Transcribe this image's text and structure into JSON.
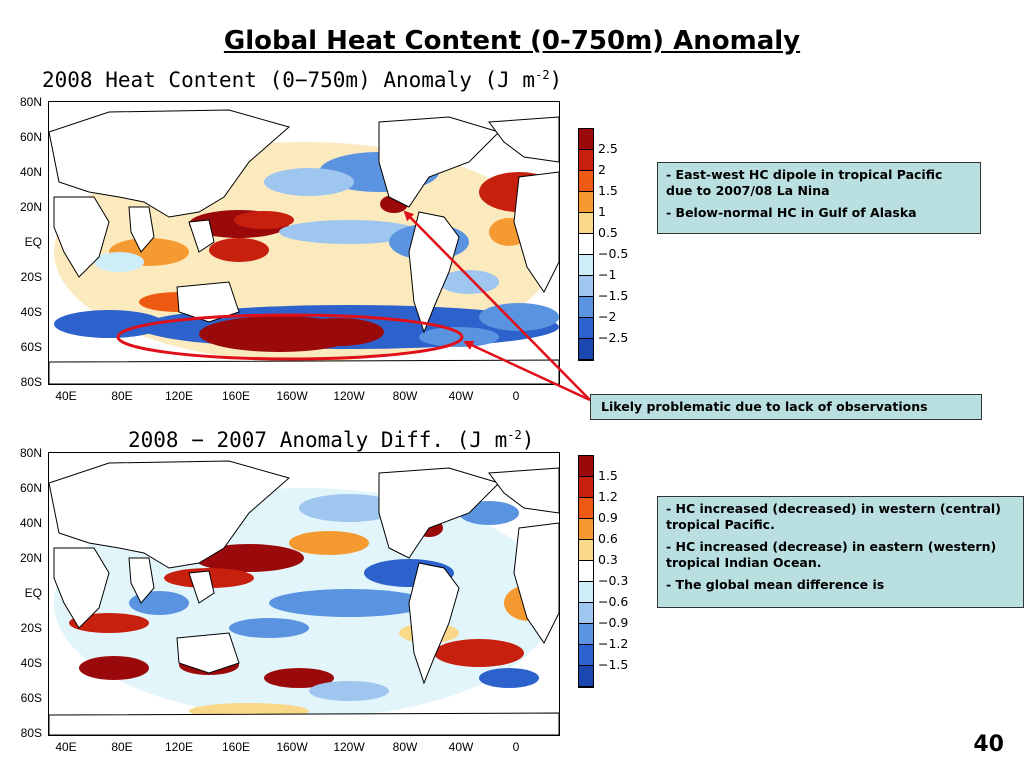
{
  "slide_title": "Global Heat Content (0-750m) Anomaly",
  "page_number": "40",
  "maps": [
    {
      "title": "2008 Heat Content (0−750m) Anomaly (J m",
      "title_sup": "-2",
      "title_suffix": ")",
      "lat_ticks": [
        "80N",
        "60N",
        "40N",
        "20N",
        "EQ",
        "20S",
        "40S",
        "60S",
        "80S"
      ],
      "lon_ticks": [
        "40E",
        "80E",
        "120E",
        "160E",
        "160W",
        "120W",
        "80W",
        "40W",
        "0"
      ],
      "colorbar_labels": [
        "2.5",
        "2",
        "1.5",
        "1",
        "0.5",
        "−0.5",
        "−1",
        "−1.5",
        "−2",
        "−2.5"
      ],
      "colorbar_colors": [
        "#9b0a0a",
        "#c8200e",
        "#ee5a14",
        "#f59a30",
        "#f9d88a",
        "#ffffff",
        "#cdeef8",
        "#9fc6ee",
        "#5a94e0",
        "#2d62cc",
        "#1a48b0"
      ]
    },
    {
      "title": "2008 − 2007 Anomaly Diff. (J m",
      "title_sup": "-2",
      "title_suffix": ")",
      "lat_ticks": [
        "80N",
        "60N",
        "40N",
        "20N",
        "EQ",
        "20S",
        "40S",
        "60S",
        "80S"
      ],
      "lon_ticks": [
        "40E",
        "80E",
        "120E",
        "160E",
        "160W",
        "120W",
        "80W",
        "40W",
        "0"
      ],
      "colorbar_labels": [
        "1.5",
        "1.2",
        "0.9",
        "0.6",
        "0.3",
        "−0.3",
        "−0.6",
        "−0.9",
        "−1.2",
        "−1.5"
      ],
      "colorbar_colors": [
        "#9b0a0a",
        "#c8200e",
        "#ee5a14",
        "#f59a30",
        "#f9d88a",
        "#ffffff",
        "#cdeef8",
        "#9fc6ee",
        "#5a94e0",
        "#2d62cc",
        "#1a48b0"
      ]
    }
  ],
  "notes_top": [
    "-  East-west HC dipole in tropical Pacific due to 2007/08 La Nina",
    "- Below-normal HC in Gulf of Alaska"
  ],
  "callout": "Likely problematic due to lack of observations",
  "notes_bottom": [
    "-  HC increased (decreased) in western (central) tropical Pacific.",
    "-  HC increased (decrease) in eastern (western) tropical Indian Ocean.",
    "- The global mean difference is"
  ],
  "colors": {
    "annotation_red": "#e0101a",
    "note_background": "#b9dfe1",
    "land": "#ffffff"
  }
}
